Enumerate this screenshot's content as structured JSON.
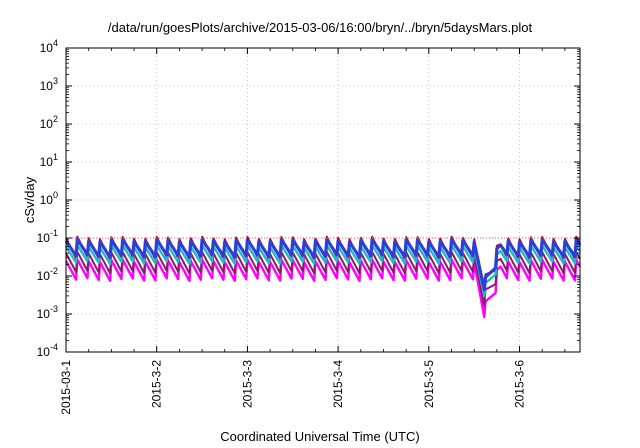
{
  "chart_data": {
    "type": "line",
    "title": "/data/run/goesPlots/archive/2015-03-06/16:00/bryn/../bryn/5daysMars.plot",
    "xlabel": "Coordinated Universal Time (UTC)",
    "ylabel": "cSv/day",
    "yscale": "log",
    "ylim": [
      0.0001,
      10000
    ],
    "yticks": [
      {
        "value": 0.0001,
        "base": "10",
        "exp": "-4"
      },
      {
        "value": 0.001,
        "base": "10",
        "exp": "-3"
      },
      {
        "value": 0.01,
        "base": "10",
        "exp": "-2"
      },
      {
        "value": 0.1,
        "base": "10",
        "exp": "-1"
      },
      {
        "value": 1,
        "base": "10",
        "exp": "0"
      },
      {
        "value": 10,
        "base": "10",
        "exp": "1"
      },
      {
        "value": 100,
        "base": "10",
        "exp": "2"
      },
      {
        "value": 1000,
        "base": "10",
        "exp": "3"
      },
      {
        "value": 10000,
        "base": "10",
        "exp": "4"
      }
    ],
    "xlim": [
      "2015-03-01",
      "2015-03-06T16:00"
    ],
    "xticks": [
      {
        "value": "2015-03-01",
        "label": "2015-03-1"
      },
      {
        "value": "2015-03-02",
        "label": "2015-3-2"
      },
      {
        "value": "2015-03-03",
        "label": "2015-3-3"
      },
      {
        "value": "2015-03-04",
        "label": "2015-3-4"
      },
      {
        "value": "2015-03-05",
        "label": "2015-3-5"
      },
      {
        "value": "2015-03-06",
        "label": "2015-3-6"
      }
    ],
    "grid": true,
    "reference_line": {
      "value": 0.1,
      "color": "#ff5555"
    },
    "series": [
      {
        "color": "#cc0000",
        "peak": 0.1,
        "trough": 0.025
      },
      {
        "color": "#2e3fd6",
        "peak": 0.085,
        "trough": 0.03
      },
      {
        "color": "#23b8c8",
        "peak": 0.06,
        "trough": 0.02
      },
      {
        "color": "#8a1a6a",
        "peak": 0.04,
        "trough": 0.011
      },
      {
        "color": "#ff00ff",
        "peak": 0.025,
        "trough": 0.007
      }
    ],
    "dip": {
      "start": "2015-03-05T12:00",
      "minimum": "2015-03-05T15:00",
      "end": "2015-03-05T19:00",
      "min_value": 0.0006
    }
  }
}
